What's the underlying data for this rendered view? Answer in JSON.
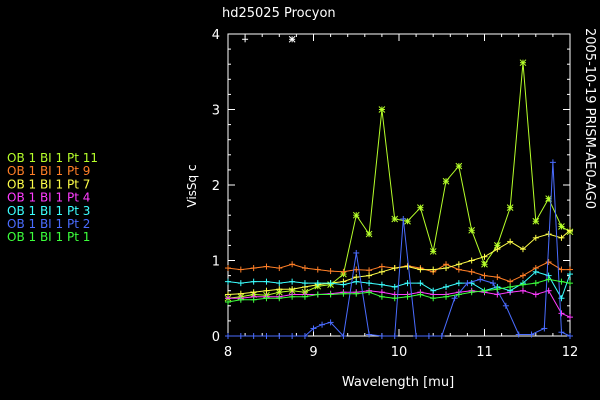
{
  "chart_data": {
    "type": "line",
    "title": "hd25025   Procyon",
    "side_label": "2005-10-19 PRISM-AE0-AG0",
    "xlabel": "Wavelength [mu]",
    "ylabel": "VisSq c",
    "xlim": [
      8,
      12
    ],
    "ylim": [
      0,
      4
    ],
    "x_ticks": [
      8,
      9,
      10,
      11,
      12
    ],
    "y_ticks": [
      0,
      1,
      2,
      3,
      4
    ],
    "x_tick_labels": [
      "8",
      "9",
      "10",
      "11",
      "12"
    ],
    "y_tick_labels": [
      "0",
      "1",
      "2",
      "3",
      "4"
    ],
    "grid": false,
    "legend_position": "left",
    "outliers": [
      {
        "x": 8.2,
        "y": 3.93,
        "symbol": "+"
      },
      {
        "x": 8.75,
        "y": 3.93,
        "symbol": "*"
      }
    ],
    "series": [
      {
        "name": "OB 1 BI 1 Pt 11",
        "color": "#b6ff2a",
        "symbol": "*",
        "x": [
          8.0,
          8.15,
          8.3,
          8.45,
          8.6,
          8.75,
          8.9,
          9.05,
          9.2,
          9.35,
          9.5,
          9.65,
          9.8,
          9.95,
          10.1,
          10.25,
          10.4,
          10.55,
          10.7,
          10.85,
          11.0,
          11.15,
          11.3,
          11.45,
          11.6,
          11.75,
          11.9,
          12.0
        ],
        "values": [
          0.5,
          0.52,
          0.55,
          0.54,
          0.58,
          0.6,
          0.58,
          0.66,
          0.68,
          0.82,
          1.6,
          1.35,
          3.0,
          1.55,
          1.52,
          1.7,
          1.12,
          2.05,
          2.25,
          1.4,
          0.95,
          1.2,
          1.7,
          3.62,
          1.52,
          1.82,
          1.45,
          1.38
        ]
      },
      {
        "name": "OB 1 BI 1 Pt 9",
        "color": "#ff7f27",
        "symbol": "+",
        "x": [
          8.0,
          8.15,
          8.3,
          8.45,
          8.6,
          8.75,
          8.9,
          9.05,
          9.2,
          9.35,
          9.5,
          9.65,
          9.8,
          9.95,
          10.1,
          10.25,
          10.4,
          10.55,
          10.7,
          10.85,
          11.0,
          11.15,
          11.3,
          11.45,
          11.6,
          11.75,
          11.9,
          12.0
        ],
        "values": [
          0.9,
          0.88,
          0.9,
          0.92,
          0.9,
          0.95,
          0.9,
          0.88,
          0.86,
          0.85,
          0.88,
          0.87,
          0.92,
          0.9,
          0.93,
          0.9,
          0.85,
          0.95,
          0.88,
          0.85,
          0.8,
          0.78,
          0.72,
          0.8,
          0.9,
          0.98,
          0.88,
          0.88
        ]
      },
      {
        "name": "OB 1 BI 1 Pt 7",
        "color": "#ffff4a",
        "symbol": "+",
        "x": [
          8.0,
          8.15,
          8.3,
          8.45,
          8.6,
          8.75,
          8.9,
          9.05,
          9.2,
          9.35,
          9.5,
          9.65,
          9.8,
          9.95,
          10.1,
          10.25,
          10.4,
          10.55,
          10.7,
          10.85,
          11.0,
          11.15,
          11.3,
          11.45,
          11.6,
          11.75,
          11.9,
          12.0
        ],
        "values": [
          0.55,
          0.56,
          0.58,
          0.6,
          0.62,
          0.62,
          0.65,
          0.68,
          0.7,
          0.72,
          0.78,
          0.8,
          0.85,
          0.9,
          0.92,
          0.88,
          0.88,
          0.9,
          0.95,
          1.0,
          1.05,
          1.15,
          1.25,
          1.15,
          1.3,
          1.35,
          1.3,
          1.4
        ]
      },
      {
        "name": "OB 1 BI 1 Pt 4",
        "color": "#ff3cff",
        "symbol": "+",
        "x": [
          8.0,
          8.15,
          8.3,
          8.45,
          8.6,
          8.75,
          8.9,
          9.05,
          9.2,
          9.35,
          9.5,
          9.65,
          9.8,
          9.95,
          10.1,
          10.25,
          10.4,
          10.55,
          10.7,
          10.85,
          11.0,
          11.15,
          11.3,
          11.45,
          11.6,
          11.75,
          11.9,
          12.0
        ],
        "values": [
          0.5,
          0.5,
          0.52,
          0.52,
          0.52,
          0.55,
          0.55,
          0.55,
          0.56,
          0.58,
          0.58,
          0.6,
          0.58,
          0.55,
          0.55,
          0.58,
          0.55,
          0.55,
          0.58,
          0.6,
          0.58,
          0.55,
          0.58,
          0.6,
          0.55,
          0.6,
          0.3,
          0.25
        ]
      },
      {
        "name": "OB 1 BI 1 Pt 3",
        "color": "#3cffff",
        "symbol": "+",
        "x": [
          8.0,
          8.15,
          8.3,
          8.45,
          8.6,
          8.75,
          8.9,
          9.05,
          9.2,
          9.35,
          9.5,
          9.65,
          9.8,
          9.95,
          10.1,
          10.25,
          10.4,
          10.55,
          10.7,
          10.85,
          11.0,
          11.15,
          11.3,
          11.45,
          11.6,
          11.75,
          11.9,
          12.0
        ],
        "values": [
          0.72,
          0.7,
          0.72,
          0.72,
          0.7,
          0.72,
          0.7,
          0.7,
          0.7,
          0.68,
          0.72,
          0.7,
          0.68,
          0.65,
          0.7,
          0.7,
          0.6,
          0.65,
          0.7,
          0.7,
          0.6,
          0.65,
          0.6,
          0.7,
          0.85,
          0.8,
          0.5,
          0.82
        ]
      },
      {
        "name": "OB 1 BI 1 Pt 2",
        "color": "#4a6cff",
        "symbol": "+",
        "x": [
          8.0,
          8.15,
          8.3,
          8.45,
          8.6,
          8.75,
          8.9,
          9.0,
          9.1,
          9.2,
          9.35,
          9.5,
          9.65,
          9.8,
          9.95,
          10.05,
          10.2,
          10.35,
          10.5,
          10.65,
          10.8,
          10.95,
          11.1,
          11.25,
          11.4,
          11.55,
          11.7,
          11.8,
          11.9,
          12.0
        ],
        "values": [
          0,
          0,
          0,
          0,
          0,
          0,
          0,
          0.1,
          0.15,
          0.18,
          0,
          1.1,
          0.02,
          0,
          0,
          1.55,
          0,
          0,
          0,
          0.5,
          0.7,
          0.75,
          0.7,
          0.4,
          0.02,
          0.02,
          0.1,
          2.3,
          0.05,
          0
        ]
      },
      {
        "name": "OB 1 BI 1 Pt 1",
        "color": "#3cff3c",
        "symbol": "+",
        "x": [
          8.0,
          8.15,
          8.3,
          8.45,
          8.6,
          8.75,
          8.9,
          9.05,
          9.2,
          9.35,
          9.5,
          9.65,
          9.8,
          9.95,
          10.1,
          10.25,
          10.4,
          10.55,
          10.7,
          10.85,
          11.0,
          11.15,
          11.3,
          11.45,
          11.6,
          11.75,
          11.9,
          12.0
        ],
        "values": [
          0.45,
          0.48,
          0.48,
          0.5,
          0.5,
          0.52,
          0.52,
          0.55,
          0.55,
          0.56,
          0.56,
          0.58,
          0.52,
          0.5,
          0.52,
          0.55,
          0.5,
          0.52,
          0.55,
          0.58,
          0.6,
          0.62,
          0.65,
          0.68,
          0.7,
          0.75,
          0.72,
          0.7
        ]
      }
    ]
  }
}
